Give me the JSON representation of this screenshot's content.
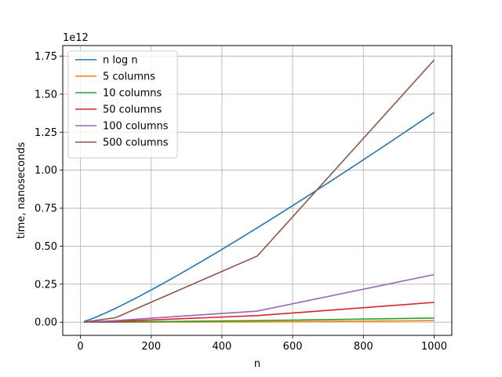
{
  "chart_data": {
    "type": "line",
    "xlabel": "n",
    "ylabel": "time, nanoseconds",
    "offset_text": "1e12",
    "xlim": [
      -50,
      1050
    ],
    "ylim": [
      -0.087,
      1.82
    ],
    "xticks": [
      0,
      200,
      400,
      600,
      800,
      1000
    ],
    "xtick_labels": [
      "0",
      "200",
      "400",
      "600",
      "800",
      "1000"
    ],
    "yticks": [
      0,
      0.25,
      0.5,
      0.75,
      1.0,
      1.25,
      1.5,
      1.75
    ],
    "ytick_labels": [
      "0.00",
      "0.25",
      "0.50",
      "0.75",
      "1.00",
      "1.25",
      "1.50",
      "1.75"
    ],
    "grid": true,
    "legend_position": "top-left",
    "x": [
      10,
      100,
      500,
      1000
    ],
    "series": [
      {
        "name": "n log n",
        "color": "#1f77b4",
        "values": [
          0.0,
          0.095,
          0.62,
          1.38
        ]
      },
      {
        "name": "5 columns",
        "color": "#ff7f0e",
        "values": [
          0.0,
          0.0,
          0.002,
          0.01
        ]
      },
      {
        "name": "10 columns",
        "color": "#2ca02c",
        "values": [
          0.0,
          0.001,
          0.01,
          0.027
        ]
      },
      {
        "name": "50 columns",
        "color": "#d62728",
        "values": [
          0.0,
          0.005,
          0.043,
          0.13
        ]
      },
      {
        "name": "100 columns",
        "color": "#9467bd",
        "values": [
          0.0,
          0.01,
          0.073,
          0.313
        ]
      },
      {
        "name": "500 columns",
        "color": "#8c564b",
        "values": [
          0.0,
          0.03,
          0.435,
          1.725
        ]
      }
    ]
  }
}
